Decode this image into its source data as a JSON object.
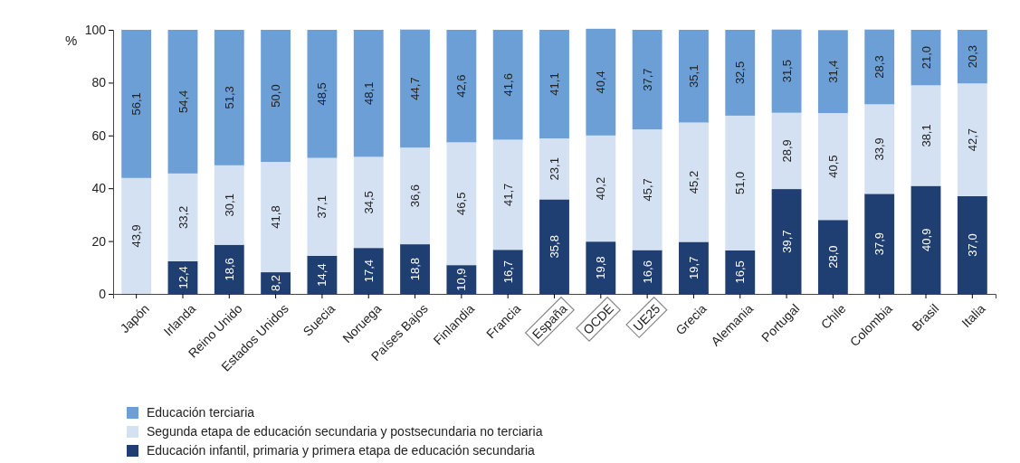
{
  "chart_data": {
    "type": "bar",
    "stacked": true,
    "ylabel": "%",
    "ylim": [
      0,
      100
    ],
    "yticks": [
      0,
      20,
      40,
      60,
      80,
      100
    ],
    "grid": false,
    "legend": "bottom",
    "categories": [
      "Japón",
      "Irlanda",
      "Reino Unido",
      "Estados Unidos",
      "Suecia",
      "Noruega",
      "Países Bajos",
      "Finlandia",
      "Francia",
      "España",
      "OCDE",
      "UE25",
      "Grecia",
      "Alemania",
      "Portugal",
      "Chile",
      "Colombia",
      "Brasil",
      "Italia"
    ],
    "series": [
      {
        "name": "Educación infantil, primaria y primera etapa de educación secundaria",
        "color": "#1f3e72",
        "values": [
          null,
          12.4,
          18.6,
          8.2,
          14.4,
          17.4,
          18.8,
          10.9,
          16.7,
          35.8,
          19.8,
          16.6,
          19.7,
          16.5,
          39.7,
          28.0,
          37.9,
          40.9,
          37.0
        ],
        "value_labels": [
          null,
          "12,4",
          "18,6",
          "8,2",
          "14,4",
          "17,4",
          "18,8",
          "10,9",
          "16,7",
          "35,8",
          "19,8",
          "16,6",
          "19,7",
          "16,5",
          "39,7",
          "28,0",
          "37,9",
          "40,9",
          "37,0"
        ]
      },
      {
        "name": "Segunda etapa de educación secundaria y postsecundaria no terciaria",
        "color": "#d4e1f3",
        "values": [
          43.9,
          33.2,
          30.1,
          41.8,
          37.1,
          34.5,
          36.6,
          46.5,
          41.7,
          23.1,
          40.2,
          45.7,
          45.2,
          51.0,
          28.9,
          40.5,
          33.9,
          38.1,
          42.7
        ],
        "value_labels": [
          "43,9",
          "33,2",
          "30,1",
          "41,8",
          "37,1",
          "34,5",
          "36,6",
          "46,5",
          "41,7",
          "23,1",
          "40,2",
          "45,7",
          "45,2",
          "51,0",
          "28,9",
          "40,5",
          "33,9",
          "38,1",
          "42,7"
        ]
      },
      {
        "name": "Educación terciaria",
        "color": "#6b9fd6",
        "values": [
          56.1,
          54.4,
          51.3,
          50.0,
          48.5,
          48.1,
          44.7,
          42.6,
          41.6,
          41.1,
          40.4,
          37.7,
          35.1,
          32.5,
          31.5,
          31.4,
          28.3,
          21.0,
          20.3
        ],
        "value_labels": [
          "56,1",
          "54,4",
          "51,3",
          "50,0",
          "48,5",
          "48,1",
          "44,7",
          "42,6",
          "41,6",
          "41,1",
          "40,4",
          "37,7",
          "35,1",
          "32,5",
          "31,5",
          "31,4",
          "28,3",
          "21,0",
          "20,3"
        ]
      }
    ]
  }
}
